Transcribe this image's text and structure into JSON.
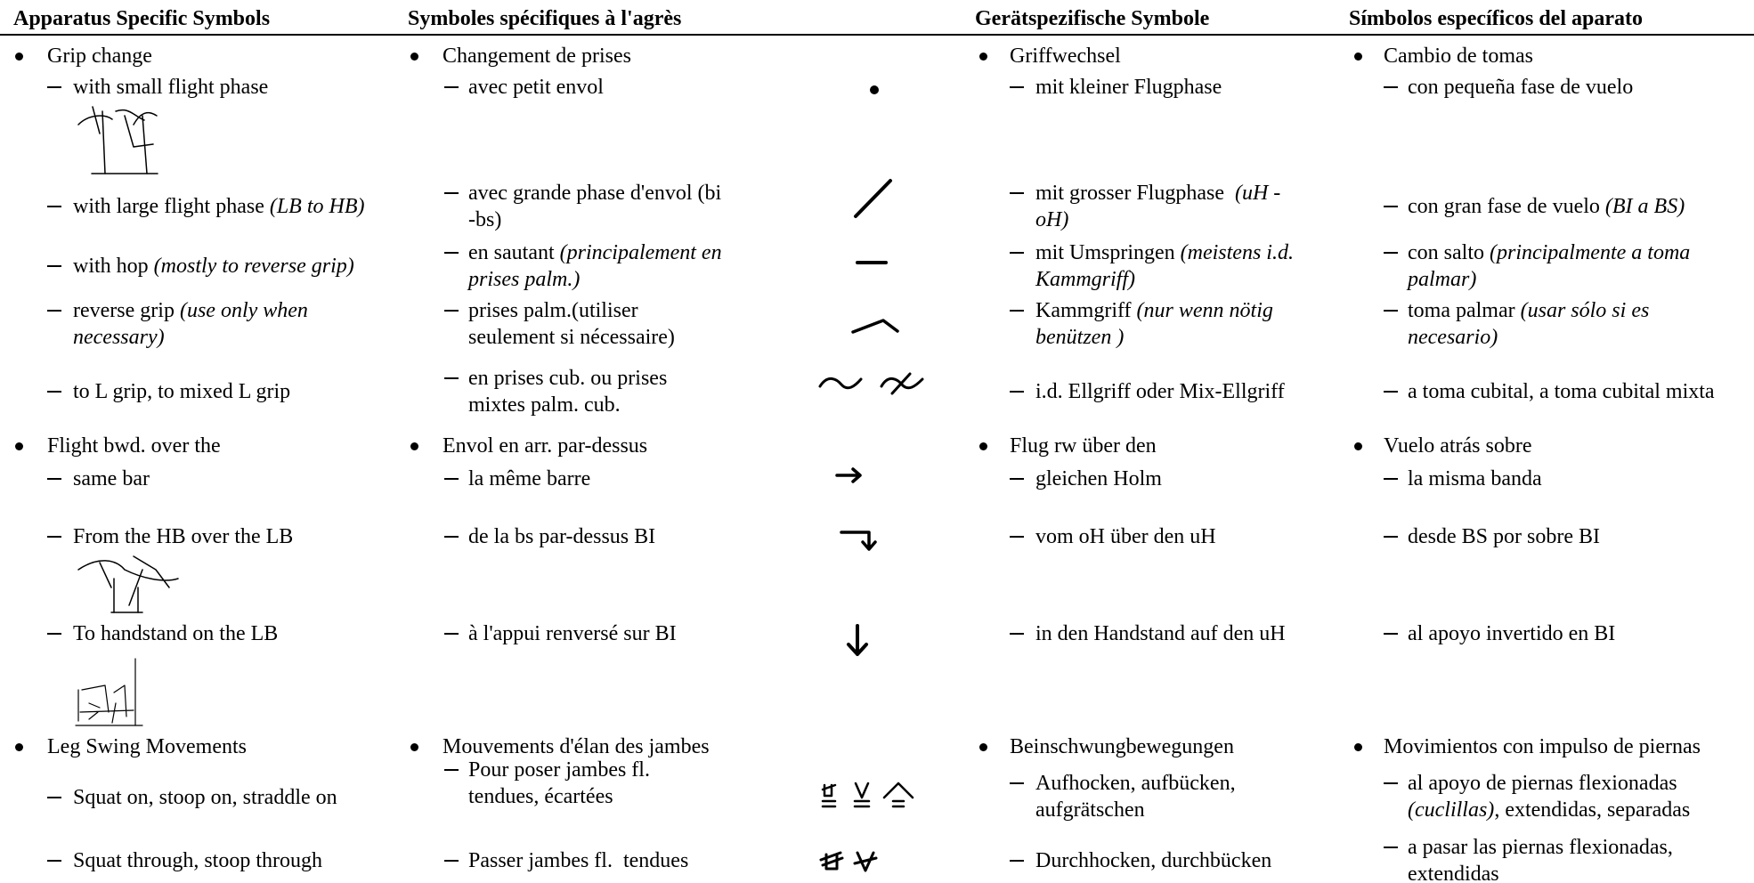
{
  "header": {
    "en": "Apparatus Specific Symbols",
    "fr": "Symboles spécifiques à l'agrès",
    "de": "Gerätspezifische Symbole",
    "es": "Símbolos específicos del aparato"
  },
  "rows": [
    {
      "en": [
        "Grip change"
      ],
      "fr": [
        "Changement de prises"
      ],
      "de": [
        "Griffwechsel"
      ],
      "es": [
        "Cambio de tomas"
      ]
    },
    {
      "en": [
        "with small flight phase"
      ],
      "fr": [
        "avec petit envol"
      ],
      "de": [
        "mit kleiner Flugphase"
      ],
      "es": [
        "con pequeña fase de vuelo"
      ]
    },
    {
      "en": [
        "with large flight phase ",
        {
          "italic": "(LB to HB)"
        }
      ],
      "fr": [
        "avec grande phase d'envol (bi\n-bs)"
      ],
      "de": [
        "mit grosser Flugphase  ",
        {
          "italic": "(uH -\noH)"
        }
      ],
      "es": [
        "con gran fase de vuelo ",
        {
          "italic": "(BI a BS)"
        }
      ]
    },
    {
      "en": [
        "with hop ",
        {
          "italic": "(mostly to reverse grip)"
        }
      ],
      "fr": [
        "en sautant ",
        {
          "italic": "(principalement en\nprises palm.)"
        }
      ],
      "de": [
        "mit Umspringen ",
        {
          "italic": "(meistens i.d.\nKammgriff)"
        }
      ],
      "es": [
        "con salto ",
        {
          "italic": "(principalmente a toma\npalmar)"
        }
      ]
    },
    {
      "en": [
        "reverse grip ",
        {
          "italic": "(use only when\nnecessary)"
        }
      ],
      "fr": [
        "prises palm.(utiliser\nseulement si nécessaire)"
      ],
      "de": [
        "Kammgriff ",
        {
          "italic": "(nur wenn nötig\nbenützen )"
        }
      ],
      "es": [
        "toma palmar ",
        {
          "italic": "(usar sólo si es\nnecesario)"
        }
      ]
    },
    {
      "en": [
        "to L grip, to mixed L grip"
      ],
      "fr": [
        "en prises cub. ou prises\nmixtes palm. cub."
      ],
      "de": [
        "i.d. Ellgriff oder Mix-Ellgriff"
      ],
      "es": [
        "a toma cubital, a toma cubital mixta"
      ]
    },
    {
      "en": [
        "Flight bwd. over the"
      ],
      "fr": [
        "Envol en arr. par-dessus"
      ],
      "de": [
        "Flug rw über den"
      ],
      "es": [
        "Vuelo atrás sobre"
      ]
    },
    {
      "en": [
        "same bar"
      ],
      "fr": [
        "la même barre"
      ],
      "de": [
        "gleichen Holm"
      ],
      "es": [
        "la misma banda"
      ]
    },
    {
      "en": [
        "From the HB over the LB"
      ],
      "fr": [
        "de la bs par-dessus BI"
      ],
      "de": [
        "vom oH über den uH"
      ],
      "es": [
        "desde BS por sobre BI"
      ]
    },
    {
      "en": [
        "To handstand on the LB"
      ],
      "fr": [
        "à l'appui renversé sur BI"
      ],
      "de": [
        "in den Handstand auf den uH"
      ],
      "es": [
        "al apoyo invertido en BI"
      ]
    },
    {
      "en": [
        "Leg Swing Movements"
      ],
      "fr": [
        "Mouvements d'élan des jambes"
      ],
      "de": [
        "Beinschwungbewegungen"
      ],
      "es": [
        "Movimientos con impulso de piernas"
      ]
    },
    {
      "en": [
        "Squat on, stoop on, straddle on"
      ],
      "fr": [
        "Pour poser jambes fl.\ntendues, écartées"
      ],
      "de": [
        "Aufhocken, aufbücken,\naufgrätschen"
      ],
      "es": [
        "al apoyo de piernas flexionadas\n",
        {
          "italic": "(cuclillas)"
        },
        ", extendidas, separadas"
      ]
    },
    {
      "en": [
        "Squat through, stoop through"
      ],
      "fr": [
        "Passer jambes fl.  tendues"
      ],
      "de": [
        "Durchhocken, durchbücken"
      ],
      "es": [
        "a pasar las piernas flexionadas,\nextendidas"
      ]
    }
  ]
}
